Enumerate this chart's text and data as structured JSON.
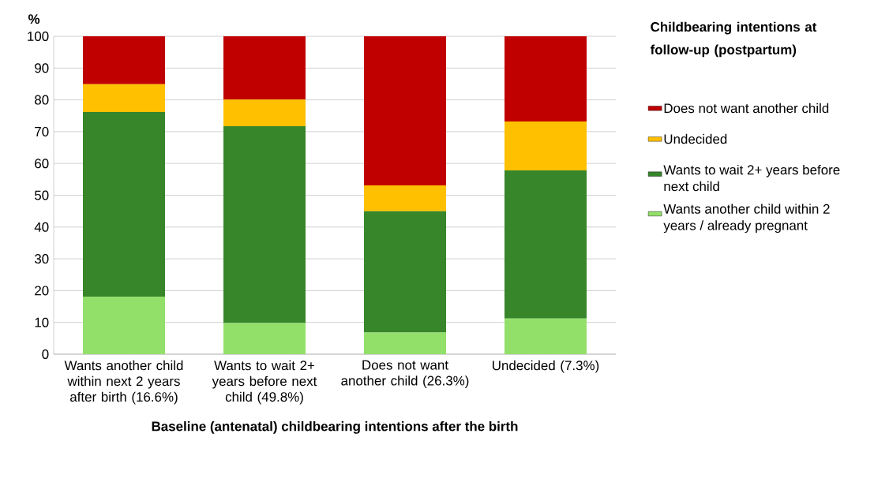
{
  "chart_data": {
    "type": "bar",
    "stacked": true,
    "ylabel": "%",
    "xlabel": "Baseline (antenatal) childbearing intentions after the birth",
    "legend_title": "Childbearing intentions at follow-up (postpartum)",
    "categories": [
      "Wants another child within next 2 years after birth (16.6%)",
      "Wants to wait 2+ years before next child (49.8%)",
      "Does not want another child (26.3%)",
      "Undecided (7.3%)"
    ],
    "series": [
      {
        "name": "Wants another child within 2 years / already pregnant",
        "color": "#92e06a",
        "values": [
          18.1,
          9.8,
          6.8,
          11.2
        ]
      },
      {
        "name": "Wants to wait 2+ years before next child",
        "color": "#37862a",
        "values": [
          58.1,
          61.9,
          38.2,
          46.6
        ]
      },
      {
        "name": "Undecided",
        "color": "#ffc000",
        "values": [
          8.7,
          8.4,
          8.1,
          15.4
        ]
      },
      {
        "name": "Does not want another child",
        "color": "#c00000",
        "values": [
          15.1,
          19.9,
          46.9,
          26.8
        ]
      }
    ],
    "ylim": [
      0,
      100
    ],
    "yticks": [
      0,
      10,
      20,
      30,
      40,
      50,
      60,
      70,
      80,
      90,
      100
    ],
    "grid": "y",
    "legend": "right"
  }
}
